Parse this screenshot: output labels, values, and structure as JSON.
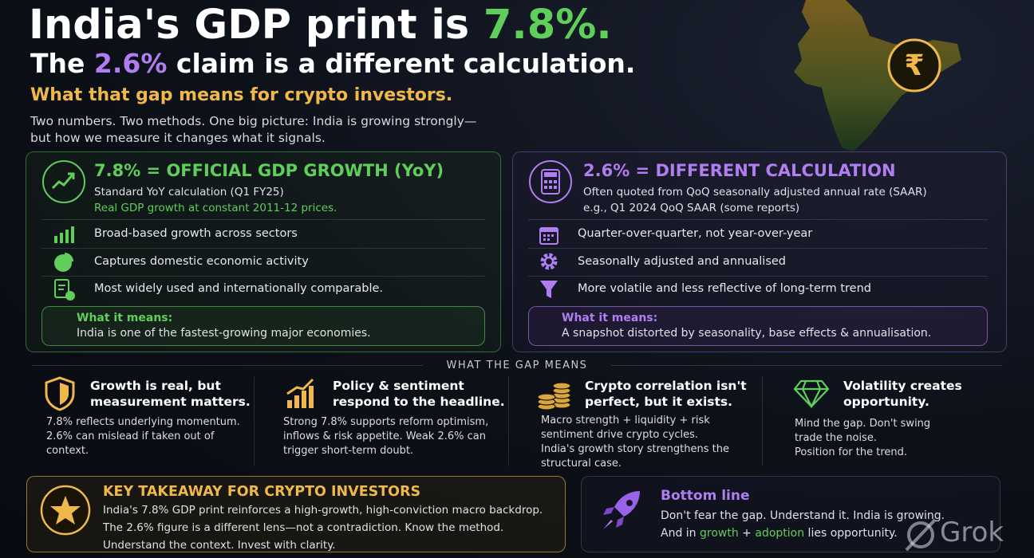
{
  "header": {
    "title_pre": "India's GDP print is ",
    "title_hl": "7.8%.",
    "line2_pre": "The ",
    "line2_hl": "2.6%",
    "line2_post": " claim is a different calculation.",
    "subtitle": "What that gap means for crypto investors.",
    "intro": [
      "Two numbers. Two methods. One big picture: India is growing strongly—",
      "but how we measure it changes what it signals."
    ],
    "map_icon": "₹"
  },
  "left_card": {
    "heading": "7.8% = OFFICIAL GDP GROWTH (YoY)",
    "sub1": "Standard YoY calculation (Q1 FY25)",
    "sub2": "Real GDP growth at constant 2011-12 prices.",
    "items": [
      "Broad-based growth across sectors",
      "Captures domestic economic activity",
      "Most widely used and internationally comparable."
    ],
    "means_label": "What it means:",
    "means_text": "India is one of the fastest-growing major economies."
  },
  "right_card": {
    "heading": "2.6% = DIFFERENT CALCULATION",
    "sub1": "Often quoted from QoQ seasonally adjusted annual rate (SAAR)",
    "sub2": "e.g., Q1 2024 QoQ SAAR (some reports)",
    "items": [
      "Quarter-over-quarter, not year-over-year",
      "Seasonally adjusted and annualised",
      "More volatile and less reflective of long-term trend"
    ],
    "means_label": "What it means:",
    "means_text": "A snapshot distorted by seasonality, base effects & annualisation."
  },
  "section_label": "WHAT THE GAP MEANS",
  "points": [
    {
      "title": [
        "Growth is real, but",
        "measurement matters."
      ],
      "body": [
        "7.8% reflects underlying momentum.",
        "2.6% can mislead if taken out of",
        "context."
      ]
    },
    {
      "title": [
        "Policy & sentiment",
        "respond to the headline."
      ],
      "body": [
        "Strong 7.8% supports reform optimism,",
        "inflows & risk appetite. Weak 2.6% can",
        "trigger short-term doubt."
      ]
    },
    {
      "title": [
        "Crypto correlation isn't",
        "perfect, but it exists."
      ],
      "body": [
        "Macro strength + liquidity + risk",
        "sentiment drive crypto cycles.",
        "India's growth story strengthens the",
        "structural case."
      ]
    },
    {
      "title": [
        "Volatility creates",
        "opportunity."
      ],
      "body": [
        "Mind the gap. Don't swing",
        "trade the noise.",
        "Position for the trend."
      ]
    }
  ],
  "takeaway": {
    "title": "KEY TAKEAWAY FOR CRYPTO INVESTORS",
    "lines": [
      "India's 7.8% GDP print reinforces a high-growth, high-conviction macro backdrop.",
      "The 2.6% figure is a different lens—not a contradiction. Know the method.",
      "Understand the context. Invest with clarity."
    ]
  },
  "bottom_line": {
    "title": "Bottom line",
    "line1": "Don't fear the gap. Understand it. India is growing.",
    "line2_pre": "And in ",
    "line2_growth": "growth",
    "line2_mid": " + ",
    "line2_adoption": "adoption",
    "line2_post": " lies opportunity."
  },
  "watermark": "Grok"
}
